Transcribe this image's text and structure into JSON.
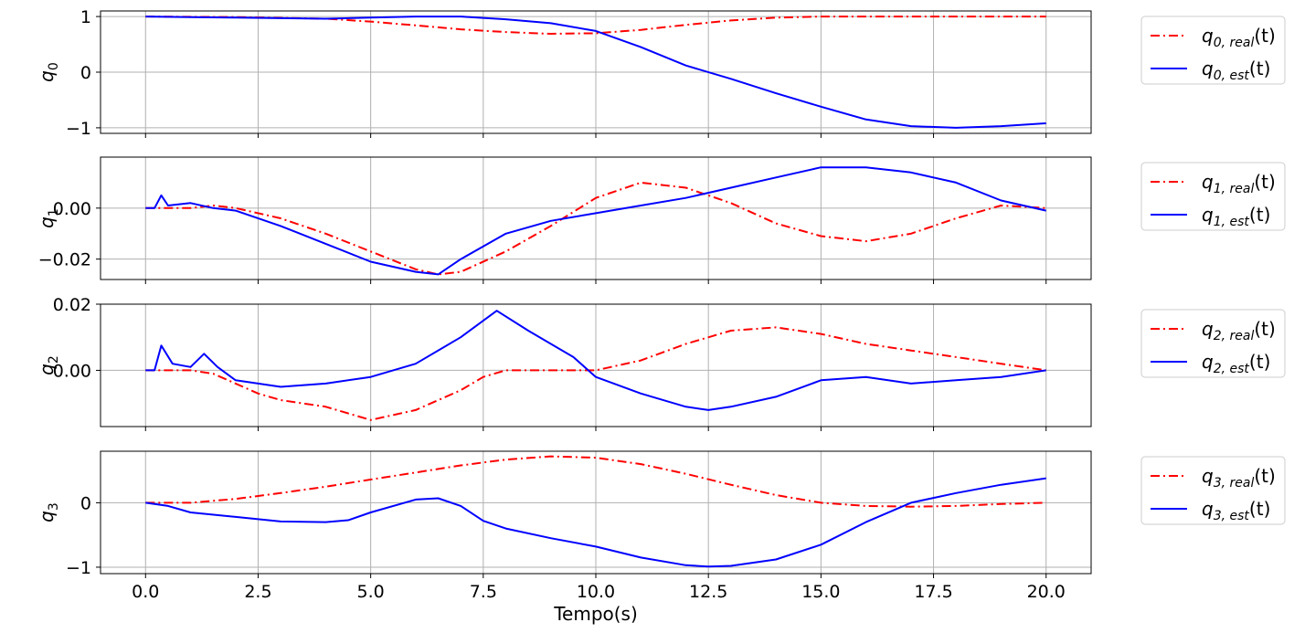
{
  "chart_data": {
    "type": "line",
    "xlabel": "Tempo(s)",
    "xlim": [
      -1.0,
      21.0
    ],
    "xticks": [
      0.0,
      2.5,
      5.0,
      7.5,
      10.0,
      12.5,
      15.0,
      17.5,
      20.0
    ],
    "xtick_labels": [
      "0.0",
      "2.5",
      "5.0",
      "7.5",
      "10.0",
      "12.5",
      "15.0",
      "17.5",
      "20.0"
    ],
    "grid": true,
    "legend_placement": "outside-right",
    "colors": {
      "real": "#ff0000",
      "est": "#0000ff"
    },
    "panels": [
      {
        "ylabel": "q",
        "ylabel_sub": "0",
        "ylim": [
          -1.1,
          1.1
        ],
        "yticks": [
          1,
          0,
          -1
        ],
        "ytick_labels": [
          "1",
          "0",
          "−1"
        ],
        "legend": [
          {
            "sym": "q",
            "sub": "0, real",
            "tail": "(t)",
            "style": "dashdot",
            "color": "#ff0000"
          },
          {
            "sym": "q",
            "sub": "0, est",
            "tail": "(t)",
            "style": "solid",
            "color": "#0000ff"
          }
        ],
        "series": [
          {
            "name": "q0,real(t)",
            "style": "dashdot",
            "x": [
              0,
              2,
              4,
              5,
              6,
              7,
              8,
              9,
              10,
              11,
              12,
              13,
              14,
              15,
              16,
              17,
              18,
              19,
              20
            ],
            "y": [
              1.0,
              0.99,
              0.96,
              0.91,
              0.84,
              0.77,
              0.72,
              0.69,
              0.7,
              0.76,
              0.85,
              0.93,
              0.98,
              1.0,
              1.0,
              1.0,
              1.0,
              1.0,
              1.0
            ]
          },
          {
            "name": "q0,est(t)",
            "style": "solid",
            "x": [
              0,
              1,
              2,
              3,
              4,
              5,
              6,
              7,
              8,
              9,
              10,
              11,
              12,
              13,
              14,
              15,
              16,
              17,
              18,
              19,
              20
            ],
            "y": [
              1.0,
              0.99,
              0.98,
              0.97,
              0.96,
              0.98,
              1.0,
              1.0,
              0.95,
              0.88,
              0.74,
              0.45,
              0.12,
              -0.12,
              -0.38,
              -0.62,
              -0.85,
              -0.97,
              -1.0,
              -0.97,
              -0.92
            ]
          }
        ]
      },
      {
        "ylabel": "q",
        "ylabel_sub": "1",
        "ylim": [
          -0.028,
          0.02
        ],
        "yticks": [
          0.0,
          -0.02
        ],
        "ytick_labels": [
          "0.00",
          "−0.02"
        ],
        "legend": [
          {
            "sym": "q",
            "sub": "1, real",
            "tail": "(t)",
            "style": "dashdot",
            "color": "#ff0000"
          },
          {
            "sym": "q",
            "sub": "1, est",
            "tail": "(t)",
            "style": "solid",
            "color": "#0000ff"
          }
        ],
        "series": [
          {
            "name": "q1,real(t)",
            "style": "dashdot",
            "x": [
              0,
              1,
              1.5,
              2,
              3,
              4,
              5,
              6,
              6.5,
              7,
              8,
              9,
              10,
              11,
              12,
              13,
              14,
              15,
              16,
              17,
              18,
              19,
              20
            ],
            "y": [
              0.0,
              0.0,
              0.001,
              0.0,
              -0.004,
              -0.01,
              -0.017,
              -0.024,
              -0.026,
              -0.025,
              -0.017,
              -0.007,
              0.004,
              0.01,
              0.008,
              0.002,
              -0.006,
              -0.011,
              -0.013,
              -0.01,
              -0.004,
              0.001,
              0.0
            ]
          },
          {
            "name": "q1,est(t)",
            "style": "solid",
            "x": [
              0,
              0.2,
              0.35,
              0.5,
              1,
              1.5,
              2,
              3,
              4,
              5,
              6,
              6.5,
              7,
              8,
              9,
              10,
              11,
              12,
              13,
              14,
              15,
              16,
              17,
              18,
              19,
              20
            ],
            "y": [
              0.0,
              0.0,
              0.005,
              0.001,
              0.002,
              0.0,
              -0.001,
              -0.007,
              -0.014,
              -0.021,
              -0.025,
              -0.026,
              -0.02,
              -0.01,
              -0.005,
              -0.002,
              0.001,
              0.004,
              0.008,
              0.012,
              0.016,
              0.016,
              0.014,
              0.01,
              0.003,
              -0.001
            ]
          }
        ]
      },
      {
        "ylabel": "q",
        "ylabel_sub": "2",
        "ylim": [
          -0.017,
          0.02
        ],
        "yticks": [
          0.02,
          0.0
        ],
        "ytick_labels": [
          "0.02",
          "0.00"
        ],
        "legend": [
          {
            "sym": "q",
            "sub": "2, real",
            "tail": "(t)",
            "style": "dashdot",
            "color": "#ff0000"
          },
          {
            "sym": "q",
            "sub": "2, est",
            "tail": "(t)",
            "style": "solid",
            "color": "#0000ff"
          }
        ],
        "series": [
          {
            "name": "q2,real(t)",
            "style": "dashdot",
            "x": [
              0,
              1,
              1.5,
              2,
              2.5,
              3,
              4,
              5,
              6,
              7,
              7.5,
              8,
              9,
              10,
              11,
              12,
              13,
              14,
              15,
              16,
              17,
              18,
              19,
              20
            ],
            "y": [
              0.0,
              0.0,
              -0.001,
              -0.004,
              -0.007,
              -0.009,
              -0.011,
              -0.015,
              -0.012,
              -0.006,
              -0.002,
              0.0,
              0.0,
              0.0,
              0.003,
              0.008,
              0.012,
              0.013,
              0.011,
              0.008,
              0.006,
              0.004,
              0.002,
              0.0
            ]
          },
          {
            "name": "q2,est(t)",
            "style": "solid",
            "x": [
              0,
              0.2,
              0.35,
              0.6,
              1,
              1.3,
              1.6,
              2,
              3,
              4,
              5,
              6,
              7,
              7.5,
              7.8,
              8.5,
              9.5,
              10,
              11,
              12,
              12.5,
              13,
              14,
              15,
              16,
              17,
              18,
              19,
              20
            ],
            "y": [
              0.0,
              0.0,
              0.0075,
              0.002,
              0.001,
              0.005,
              0.001,
              -0.003,
              -0.005,
              -0.004,
              -0.002,
              0.002,
              0.01,
              0.015,
              0.018,
              0.012,
              0.004,
              -0.002,
              -0.007,
              -0.011,
              -0.012,
              -0.011,
              -0.008,
              -0.003,
              -0.002,
              -0.004,
              -0.003,
              -0.002,
              0.0
            ]
          }
        ]
      },
      {
        "ylabel": "q",
        "ylabel_sub": "3",
        "ylim": [
          -1.1,
          0.8
        ],
        "yticks": [
          0,
          -1
        ],
        "ytick_labels": [
          "0",
          "−1"
        ],
        "legend": [
          {
            "sym": "q",
            "sub": "3, real",
            "tail": "(t)",
            "style": "dashdot",
            "color": "#ff0000"
          },
          {
            "sym": "q",
            "sub": "3, est",
            "tail": "(t)",
            "style": "solid",
            "color": "#0000ff"
          }
        ],
        "series": [
          {
            "name": "q3,real(t)",
            "style": "dashdot",
            "x": [
              0,
              1,
              2,
              3,
              4,
              5,
              6,
              7,
              8,
              9,
              10,
              11,
              12,
              13,
              14,
              15,
              16,
              17,
              18,
              19,
              20
            ],
            "y": [
              0.0,
              0.0,
              0.06,
              0.15,
              0.25,
              0.36,
              0.47,
              0.58,
              0.67,
              0.72,
              0.7,
              0.6,
              0.45,
              0.28,
              0.12,
              0.0,
              -0.05,
              -0.06,
              -0.05,
              -0.02,
              0.0
            ]
          },
          {
            "name": "q3,est(t)",
            "style": "solid",
            "x": [
              0,
              0.5,
              1,
              2,
              3,
              4,
              4.5,
              5,
              6,
              6.5,
              7,
              7.5,
              8,
              9,
              10,
              11,
              12,
              12.5,
              13,
              14,
              15,
              16,
              17,
              18,
              19,
              20
            ],
            "y": [
              0.0,
              -0.05,
              -0.15,
              -0.22,
              -0.29,
              -0.3,
              -0.27,
              -0.15,
              0.05,
              0.07,
              -0.05,
              -0.28,
              -0.4,
              -0.55,
              -0.68,
              -0.85,
              -0.97,
              -0.99,
              -0.98,
              -0.88,
              -0.65,
              -0.3,
              0.0,
              0.15,
              0.28,
              0.38
            ]
          }
        ]
      }
    ]
  }
}
